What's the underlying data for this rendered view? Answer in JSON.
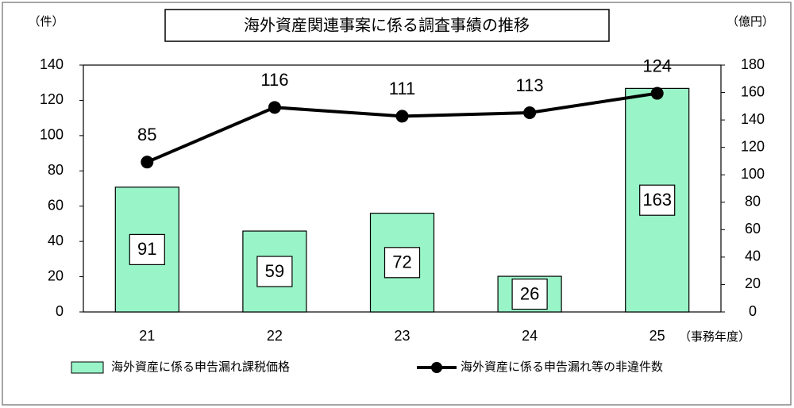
{
  "chart_data": {
    "type": "bar-line",
    "title": "海外資産関連事案に係る調査事績の推移",
    "y_label": "（件）",
    "y2_label": "（億円）",
    "x_label": "（事務年度）",
    "categories": [
      "21",
      "22",
      "23",
      "24",
      "25"
    ],
    "series": [
      {
        "name": "海外資産に係る申告漏れ課税価格",
        "type": "bar",
        "axis": "y2",
        "color": "#99f5c8",
        "values": [
          91,
          59,
          72,
          26,
          163
        ]
      },
      {
        "name": "海外資産に係る申告漏れ等の非違件数",
        "type": "line",
        "axis": "y",
        "color": "#000000",
        "values": [
          85,
          116,
          111,
          113,
          124
        ]
      }
    ],
    "ylim": [
      0,
      140
    ],
    "yticks": [
      0,
      20,
      40,
      60,
      80,
      100,
      120,
      140
    ],
    "y2lim": [
      0,
      180
    ],
    "y2ticks": [
      0,
      20,
      40,
      60,
      80,
      100,
      120,
      140,
      160,
      180
    ],
    "grid": false
  }
}
